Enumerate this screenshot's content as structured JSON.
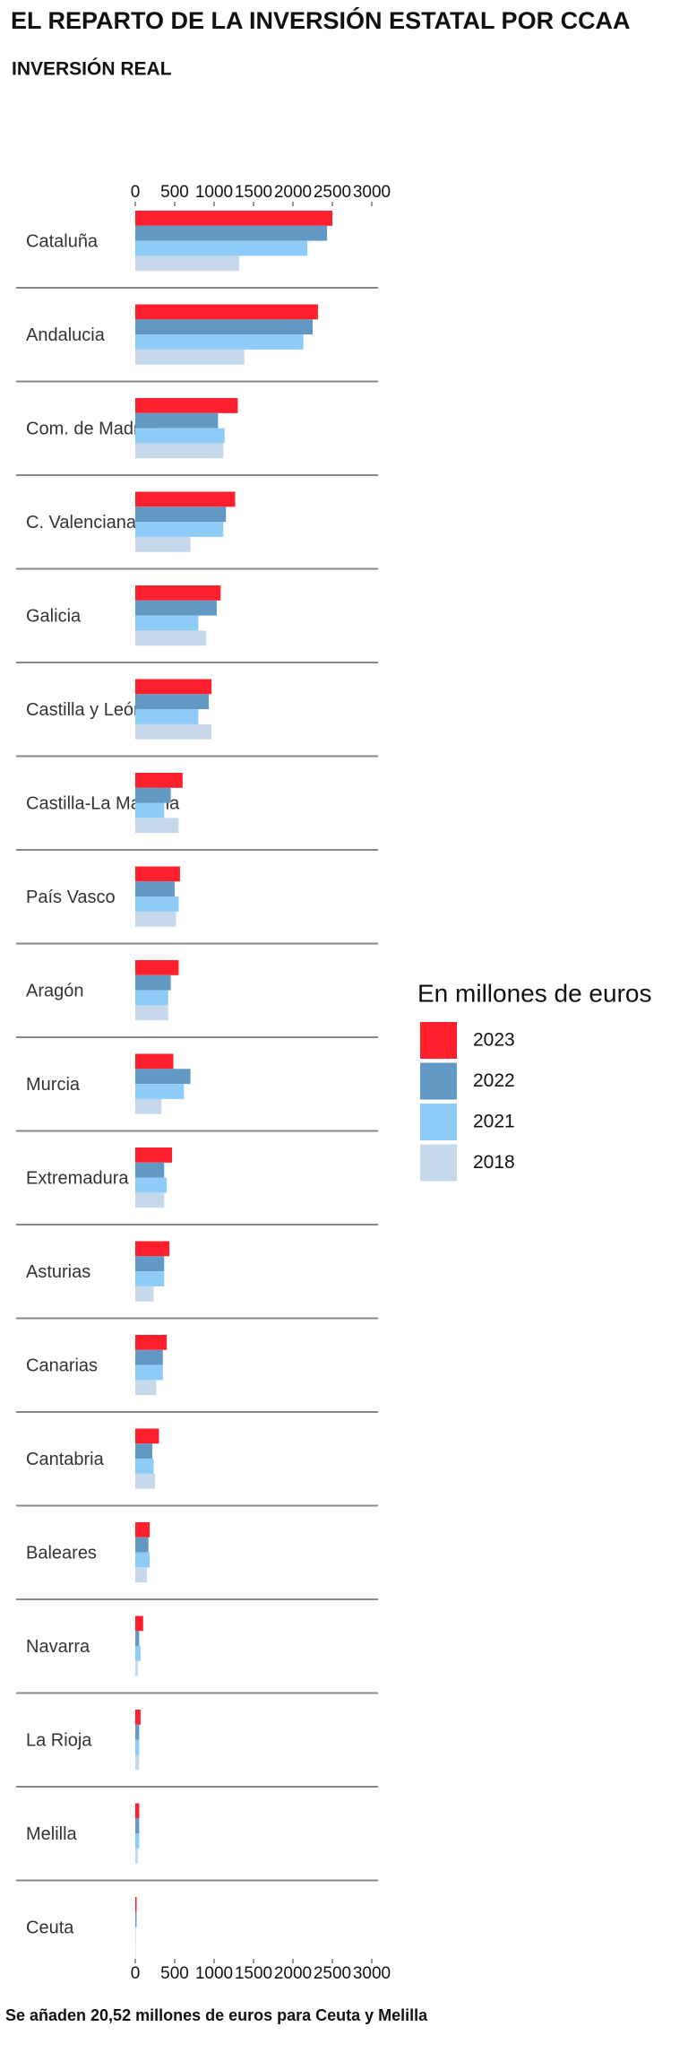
{
  "chart_data": {
    "type": "bar",
    "orientation": "horizontal",
    "title": "EL REPARTO DE LA INVERSIÓN ESTATAL POR CCAA",
    "subtitle": "INVERSIÓN REAL",
    "legend_title": "En millones de euros",
    "footnote": "Se añaden 20,52 millones de euros para Ceuta y Melilla",
    "categories": [
      "Cataluña",
      "Andalucia",
      "Com. de Madrid",
      "C. Valenciana",
      "Galicia",
      "Castilla y León",
      "Castilla-La Mancha",
      "País Vasco",
      "Aragón",
      "Murcia",
      "Extremadura",
      "Asturias",
      "Canarias",
      "Cantabria",
      "Baleares",
      "Navarra",
      "La Rioja",
      "Melilla",
      "Ceuta"
    ],
    "series": [
      {
        "name": "2023",
        "color": "#ff1f2d",
        "values": [
          2500,
          2317,
          1300,
          1267,
          1083,
          967,
          600,
          567,
          550,
          483,
          467,
          433,
          400,
          300,
          183,
          100,
          67,
          50,
          17
        ]
      },
      {
        "name": "2022",
        "color": "#6199c4",
        "values": [
          2433,
          2250,
          1050,
          1150,
          1033,
          933,
          450,
          500,
          450,
          700,
          367,
          367,
          350,
          217,
          167,
          50,
          50,
          50,
          17
        ]
      },
      {
        "name": "2021",
        "color": "#8ecbf7",
        "values": [
          2183,
          2133,
          1133,
          1117,
          800,
          800,
          367,
          550,
          417,
          617,
          400,
          367,
          350,
          233,
          183,
          67,
          50,
          50,
          5
        ]
      },
      {
        "name": "2018",
        "color": "#c5d9ea",
        "values": [
          1317,
          1383,
          1117,
          700,
          900,
          967,
          550,
          517,
          417,
          333,
          367,
          233,
          267,
          250,
          150,
          33,
          50,
          33,
          5
        ]
      }
    ],
    "xlim": [
      0,
      3000
    ],
    "xticks": [
      0,
      500,
      1000,
      1500,
      2000,
      2500,
      3000
    ],
    "legend": "right"
  }
}
